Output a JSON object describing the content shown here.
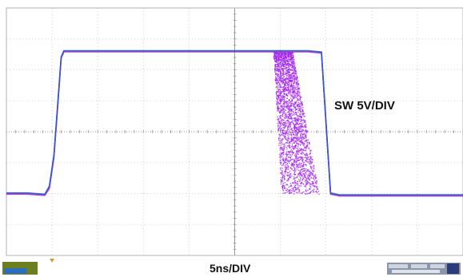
{
  "chart_data": {
    "type": "line",
    "title": "",
    "xlabel": "5ns/DIV",
    "ylabel": "",
    "annotations": [
      {
        "text": "SW 5V/DIV"
      }
    ],
    "x_divisions": 10,
    "y_divisions": 8,
    "x_unit": "ns",
    "y_unit": "V",
    "ns_per_div": 5,
    "volts_per_div": 5,
    "xlim": [
      0,
      50
    ],
    "ylim": [
      -20,
      20
    ],
    "grid": true,
    "series": [
      {
        "color": "#1fa8a0",
        "x": [
          0,
          2.3,
          4.2,
          4.7,
          5.2,
          5.6,
          6.0,
          6.3,
          8,
          15,
          25,
          30,
          32,
          33.0,
          34.5,
          35.5,
          36.5,
          40,
          45,
          50
        ],
        "y": [
          -10.0,
          -10.0,
          -10.2,
          -9.0,
          -4.0,
          4.0,
          12.0,
          13.0,
          13.0,
          13.0,
          13.0,
          13.0,
          13.0,
          13.0,
          12.8,
          -10.0,
          -10.3,
          -10.3,
          -10.3,
          -10.3
        ]
      },
      {
        "color": "#b23cc8",
        "x": [
          0,
          2.3,
          4.2,
          4.7,
          5.2,
          5.6,
          6.0,
          6.3,
          8,
          15,
          25,
          30,
          32,
          33.0,
          34.5,
          35.5,
          36.5,
          40,
          45,
          50
        ],
        "y": [
          -10.1,
          -10.1,
          -10.3,
          -9.2,
          -4.2,
          3.8,
          11.9,
          12.9,
          12.9,
          12.9,
          12.9,
          12.9,
          12.9,
          12.9,
          12.7,
          -10.1,
          -10.4,
          -10.4,
          -10.4,
          -10.4
        ]
      },
      {
        "color": "#2b50d8",
        "x": [
          0,
          2.3,
          4.2,
          4.7,
          5.2,
          5.6,
          6.0,
          6.3,
          8,
          15,
          25,
          30,
          32,
          33.0,
          34.5,
          35.5,
          36.5,
          40,
          45,
          50
        ],
        "y": [
          -9.9,
          -9.9,
          -10.1,
          -8.8,
          -3.8,
          4.2,
          12.1,
          13.1,
          13.1,
          13.1,
          13.1,
          13.1,
          13.1,
          13.1,
          12.9,
          -9.9,
          -10.2,
          -10.2,
          -10.2,
          -10.2
        ]
      }
    ],
    "fall_jitter_band": {
      "color": "#a020f0",
      "x_start_min": 29.2,
      "x_start_max": 31.3,
      "x_end_min": 30.1,
      "x_end_max": 34.2,
      "y_high": 13.0,
      "y_low": -10.0
    }
  }
}
